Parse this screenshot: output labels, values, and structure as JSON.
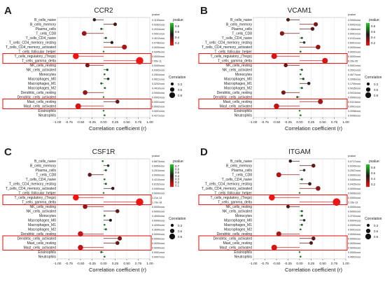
{
  "figure": {
    "panel_letters": [
      "A",
      "B",
      "C",
      "D"
    ],
    "pvalue_legend_title": "pvalue",
    "correlation_legend_title": "Correlation",
    "correlation_legend_values": [
      "0.3",
      "0.6",
      "0.9"
    ],
    "pvalue_column_header": "pvalue"
  },
  "chart_data": [
    {
      "panel": "A",
      "type": "lollipop",
      "title": "CCR2",
      "xlabel": "Correlation coefficient (r)",
      "ylabel": "",
      "xlim": [
        -1.0,
        1.0
      ],
      "xticks": [
        "-1.00",
        "-0.75",
        "-0.50",
        "-0.25",
        "0.00",
        "0.25",
        "0.50",
        "0.75",
        "1.00"
      ],
      "pvalue_scale_labels": [
        "0.8",
        "0.6",
        "0.4",
        "0.2"
      ],
      "categories": [
        "B_cells_naive",
        "B_cells_memory",
        "Plasma_cells",
        "T_cells_CD8",
        "T_cells_CD4_naive",
        "T_cells_CD4_memory_resting",
        "T_cells_CD4_memory_activated",
        "T_cells_follicular_helper",
        "T_cells_regulatory_(Tregs)",
        "T_cells_gamma_delta",
        "NK_cells_resting",
        "NK_cells_activated",
        "Monocytes",
        "Macrophages_M0",
        "Macrophages_M1",
        "Macrophages_M2",
        "Dendritic_cells_resting",
        "Dendritic_cells_activated",
        "Mast_cells_resting",
        "Mast_cells_activated",
        "Eosinophils",
        "Neutrophils"
      ],
      "values": [
        -0.2,
        0.25,
        -0.05,
        -0.42,
        0.05,
        0.18,
        0.45,
        0.0,
        -0.6,
        0.78,
        -0.35,
        0.08,
        0.02,
        0.1,
        -0.05,
        0.03,
        -0.4,
        0.0,
        0.3,
        -0.55,
        0.0,
        0.02
      ],
      "pvalues": [
        "0.1153xxxx",
        "0.0252xxxx",
        "0.2034xxxx",
        "0.0001xxxx",
        "0.4012xxxx",
        "0.0796xxxx",
        "0.0000xxxx",
        "0.0345xxxx",
        "0.0000xxxx",
        "7.00e-11",
        "0.0000xxxx",
        "0.0302xxxx",
        "0.2504xxxx",
        "0.0621xxxx",
        "0.3202xxxx",
        "0.4410xxxx",
        "0.0000xxxx",
        "0.0002xxxx",
        "0.0001xxxx",
        "0.0002xxxx",
        "0.0001xxxx",
        "0.4271xxxx"
      ],
      "highlight_groups": [
        [
          "T_cells_regulatory_(Tregs)",
          "T_cells_gamma_delta"
        ],
        [
          "Mast_cells_resting",
          "Mast_cells_activated"
        ]
      ]
    },
    {
      "panel": "B",
      "type": "lollipop",
      "title": "VCAM1",
      "xlabel": "Correlation coefficient (r)",
      "ylabel": "",
      "xlim": [
        -1.0,
        1.0
      ],
      "xticks": [
        "-1.00",
        "-0.75",
        "-0.50",
        "-0.25",
        "0.00",
        "0.25",
        "0.50",
        "0.75",
        "1.00"
      ],
      "pvalue_scale_labels": [
        "0.8",
        "0.6",
        "0.4",
        "0.2"
      ],
      "categories": [
        "B_cells_naive",
        "B_cells_memory",
        "Plasma_cells",
        "T_cells_CD8",
        "T_cells_CD4_naive",
        "T_cells_CD4_memory_resting",
        "T_cells_CD4_memory_activated",
        "T_cells_follicular_helper",
        "T_cells_regulatory_(Tregs)",
        "T_cells_gamma_delta",
        "NK_cells_resting",
        "NK_cells_activated",
        "Monocytes",
        "Macrophages_M0",
        "Macrophages_M1",
        "Macrophages_M2",
        "Dendritic_cells_resting",
        "Dendritic_cells_activated",
        "Mast_cells_resting",
        "Mast_cells_activated",
        "Eosinophils",
        "Neutrophils"
      ],
      "values": [
        -0.25,
        0.35,
        0.28,
        -0.38,
        0.05,
        0.1,
        0.4,
        0.02,
        -0.55,
        0.55,
        -0.3,
        0.05,
        0.02,
        0.08,
        0.2,
        0.05,
        -0.35,
        -0.05,
        0.45,
        -0.5,
        0.0,
        0.02
      ],
      "pvalues": [
        "0.0000xxxx",
        "0.0002xxxx",
        "0.1584xxxx",
        "0.0001xxxx",
        "0.0131xxxx",
        "0.6001xxxx",
        "0.0000xxxx",
        "0.0002xxxx",
        "0.0000xxxx",
        "6.15e-05",
        "0.0001xxxx",
        "0.2541xxxx",
        "0.4677xxxx",
        "0.2006xxxx",
        "0.1709xxxx",
        "0.0035xxxx",
        "0.0024xxxx",
        "0.0000xxxx",
        "0.0113xxxx",
        "0.0001xxxx",
        "0.2008xxxx",
        "0.0006xxxx"
      ],
      "highlight_groups": [
        [
          "T_cells_regulatory_(Tregs)",
          "T_cells_gamma_delta"
        ],
        [
          "Mast_cells_resting",
          "Mast_cells_activated"
        ]
      ]
    },
    {
      "panel": "C",
      "type": "lollipop",
      "title": "CSF1R",
      "xlabel": "Correlation coefficient (r)",
      "ylabel": "",
      "xlim": [
        -1.0,
        1.0
      ],
      "xticks": [
        "-1.00",
        "-0.75",
        "-0.50",
        "-0.25",
        "0.00",
        "0.25",
        "0.50",
        "0.75",
        "1.00"
      ],
      "pvalue_scale_labels": [
        "0.7",
        "0.6",
        "0.5",
        "0.4",
        "0.3",
        "0.2",
        "0.1"
      ],
      "categories": [
        "B_cells_naive",
        "B_cells_memory",
        "Plasma_cells",
        "T_cells_CD8",
        "T_cells_CD4_naive",
        "T_cells_CD4_memory_resting",
        "T_cells_CD4_memory_activated",
        "T_cells_follicular_helper",
        "T_cells_regulatory_(Tregs)",
        "T_cells_gamma_delta",
        "NK_cells_resting",
        "NK_cells_activated",
        "Monocytes",
        "Macrophages_M0",
        "Macrophages_M1",
        "Macrophages_M2",
        "Dendritic_cells_resting",
        "Dendritic_cells_activated",
        "Mast_cells_resting",
        "Mast_cells_activated",
        "Eosinophils",
        "Neutrophils"
      ],
      "values": [
        -0.02,
        0.1,
        0.05,
        -0.3,
        0.02,
        0.05,
        0.2,
        0.0,
        -0.6,
        0.78,
        -0.4,
        0.3,
        0.02,
        0.15,
        0.02,
        0.05,
        -0.5,
        0.35,
        0.3,
        -0.5,
        -0.05,
        0.02
      ],
      "pvalues": [
        "0.6873xxxx",
        "0.6054xxxx",
        "0.2510xxxx",
        "0.0000xxxx",
        "0.4210xxxx",
        "0.6152xxxx",
        "0.0000xxxx",
        "0.0000xxxx",
        "1.21e-14",
        "1.73e-18",
        "0.0000xxxx",
        "0.0000xxxx",
        "0.4000xxxx",
        "0.0000xxxx",
        "0.4200xxxx",
        "0.3000xxxx",
        "0.0000xxxx",
        "0.0000xxxx",
        "0.0000xxxx",
        "0.0000xxxx",
        "0.0001xxxx",
        "0.0007xxxx"
      ],
      "highlight_groups": [
        [
          "T_cells_regulatory_(Tregs)",
          "T_cells_gamma_delta"
        ],
        [
          "Dendritic_cells_activated",
          "Mast_cells_resting",
          "Mast_cells_activated"
        ]
      ]
    },
    {
      "panel": "D",
      "type": "lollipop",
      "title": "ITGAM",
      "xlabel": "Correlation coefficient (r)",
      "ylabel": "",
      "xlim": [
        -1.0,
        1.0
      ],
      "xticks": [
        "-1.00",
        "-0.75",
        "-0.50",
        "-0.25",
        "0.00",
        "0.25",
        "0.50",
        "0.75",
        "1.00"
      ],
      "pvalue_scale_labels": [
        "0.8",
        "0.6",
        "0.4",
        "0.2"
      ],
      "categories": [
        "B_cells_naive",
        "B_cells_memory",
        "Plasma_cells",
        "T_cells_CD8",
        "T_cells_CD4_naive",
        "T_cells_CD4_memory_resting",
        "T_cells_CD4_memory_activated",
        "T_cells_follicular_helper",
        "T_cells_regulatory_(Tregs)",
        "T_cells_gamma_delta",
        "NK_cells_resting",
        "NK_cells_activated",
        "Monocytes",
        "Macrophages_M0",
        "Macrophages_M1",
        "Macrophages_M2",
        "Dendritic_cells_resting",
        "Dendritic_cells_activated",
        "Mast_cells_resting",
        "Mast_cells_activated",
        "Eosinophils",
        "Neutrophils"
      ],
      "values": [
        -0.2,
        0.3,
        0.1,
        -0.45,
        0.05,
        0.22,
        0.4,
        0.0,
        -0.6,
        0.8,
        -0.25,
        0.05,
        0.05,
        0.1,
        0.05,
        0.02,
        -0.45,
        0.3,
        0.25,
        -0.55,
        0.0,
        0.02
      ],
      "pvalues": [
        "0.0717xxxx",
        "0.0205xxxx",
        "0.2547xxxx",
        "0.0000xxxx",
        "0.0405xxxx",
        "0.0425xxxx",
        "0.0000xxxx",
        "0.0006xxxx",
        "0.0000xxxx",
        "2.15e-13",
        "0.0000xxxx",
        "0.0000xxxx",
        "0.3702xxxx",
        "0.0004xxxx",
        "0.0000xxxx",
        "0.0001xxxx",
        "0.0000xxxx",
        "0.0000xxxx",
        "0.0000xxxx",
        "0.0000xxxx",
        "0.0000xxxx",
        "0.4502xxxx"
      ],
      "highlight_groups": [
        [
          "T_cells_regulatory_(Tregs)",
          "T_cells_gamma_delta"
        ],
        [
          "Dendritic_cells_activated",
          "Mast_cells_resting",
          "Mast_cells_activated"
        ]
      ]
    }
  ]
}
